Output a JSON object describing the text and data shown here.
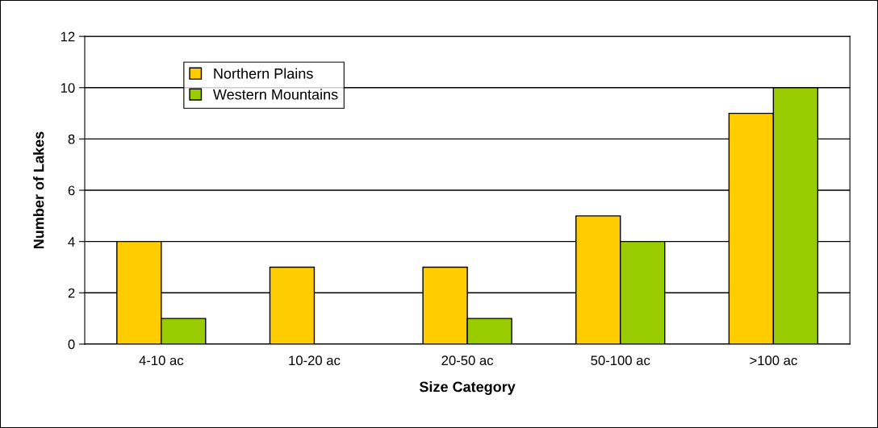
{
  "chart_data": {
    "type": "bar",
    "xlabel": "Size Category",
    "ylabel": "Number of Lakes",
    "categories": [
      "4-10 ac",
      "10-20 ac",
      "20-50 ac",
      "50-100 ac",
      ">100 ac"
    ],
    "series": [
      {
        "name": "Northern Plains",
        "color": "#ffcc00",
        "values": [
          4,
          3,
          3,
          5,
          9
        ]
      },
      {
        "name": "Western Mountains",
        "color": "#99cc00",
        "values": [
          1,
          0,
          1,
          4,
          10
        ]
      }
    ],
    "ylim": [
      0,
      12
    ],
    "yticks": [
      0,
      2,
      4,
      6,
      8,
      10,
      12
    ],
    "grid": "y",
    "legend": "top left"
  }
}
